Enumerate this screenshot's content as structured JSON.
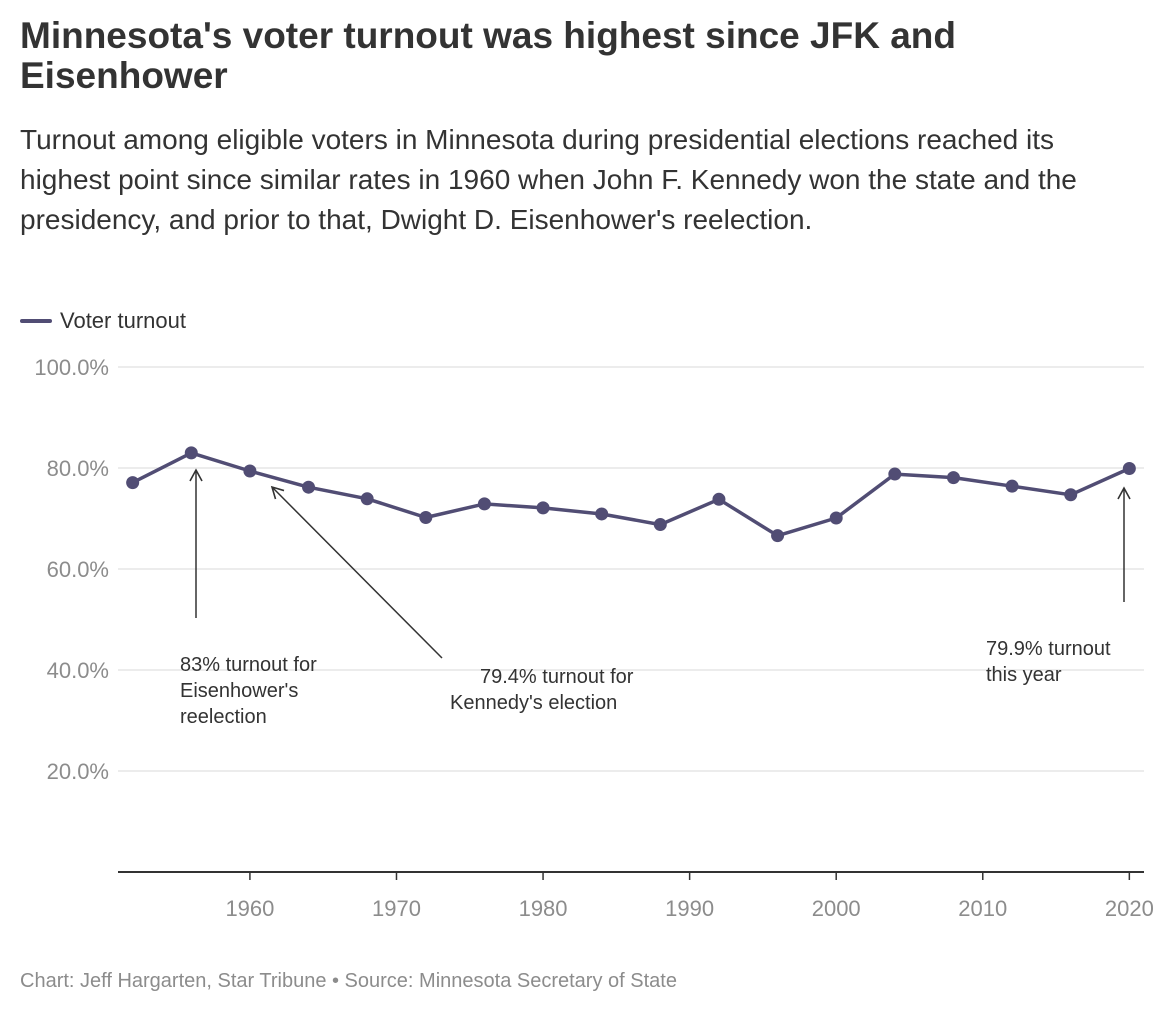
{
  "title": "Minnesota's voter turnout was highest since JFK and Eisenhower",
  "subtitle": "Turnout among eligible voters in Minnesota during presidential elections reached its highest point since similar rates in 1960 when John F. Kennedy won the state and the presidency, and prior to that, Dwight D. Eisenhower's reelection.",
  "legend": {
    "label": "Voter turnout"
  },
  "footer": "Chart: Jeff Hargarten, Star Tribune • Source: Minnesota Secretary of State",
  "colors": {
    "line": "#514d74",
    "grid": "#e6e6e6",
    "axis": "#333333",
    "tick_text": "#8c8c8c",
    "annotation": "#333333"
  },
  "annotations": [
    {
      "lines": [
        "83% turnout for",
        "Eisenhower's",
        "reelection"
      ]
    },
    {
      "lines": [
        "79.4% turnout for",
        "Kennedy's election"
      ]
    },
    {
      "lines": [
        "79.9% turnout",
        "this year"
      ]
    }
  ],
  "chart_data": {
    "type": "line",
    "title": "",
    "xlabel": "",
    "ylabel": "",
    "xlim": [
      1951,
      2021
    ],
    "ylim": [
      0,
      100
    ],
    "xticks": [
      1960,
      1970,
      1980,
      1990,
      2000,
      2010,
      2020
    ],
    "xtick_labels": [
      "1960",
      "1970",
      "1980",
      "1990",
      "2000",
      "2010",
      "2020"
    ],
    "yticks": [
      20,
      40,
      60,
      80,
      100
    ],
    "ytick_labels": [
      "20.0%",
      "40.0%",
      "60.0%",
      "80.0%",
      "100.0%"
    ],
    "grid": true,
    "legend": "top-left",
    "series": [
      {
        "name": "Voter turnout",
        "x": [
          1952,
          1956,
          1960,
          1964,
          1968,
          1972,
          1976,
          1980,
          1984,
          1988,
          1992,
          1996,
          2000,
          2004,
          2008,
          2012,
          2016,
          2020
        ],
        "values": [
          77.1,
          83.0,
          79.4,
          76.2,
          73.9,
          70.2,
          72.9,
          72.1,
          70.9,
          68.8,
          73.8,
          66.6,
          70.1,
          78.8,
          78.1,
          76.4,
          74.7,
          79.9
        ]
      }
    ]
  }
}
